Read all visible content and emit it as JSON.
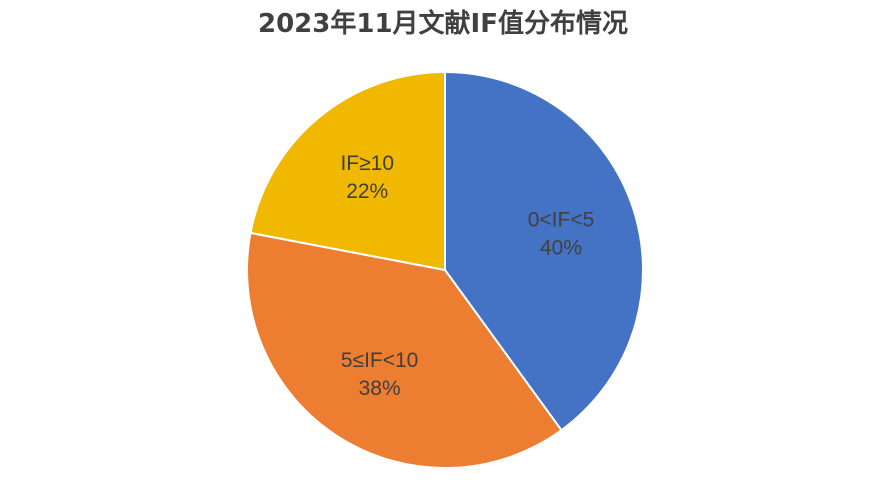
{
  "chart_data": {
    "type": "pie",
    "title": "2023年11月文献IF值分布情况",
    "categories": [
      "0<IF<5",
      "5≤IF<10",
      "IF≥10"
    ],
    "values": [
      40,
      38,
      22
    ],
    "labels": [
      "40%",
      "38%",
      "22%"
    ],
    "colors": [
      "#4472C4",
      "#ED7D31",
      "#F0B800"
    ],
    "start_angle_deg": 0,
    "direction": "clockwise",
    "legend": "none"
  }
}
